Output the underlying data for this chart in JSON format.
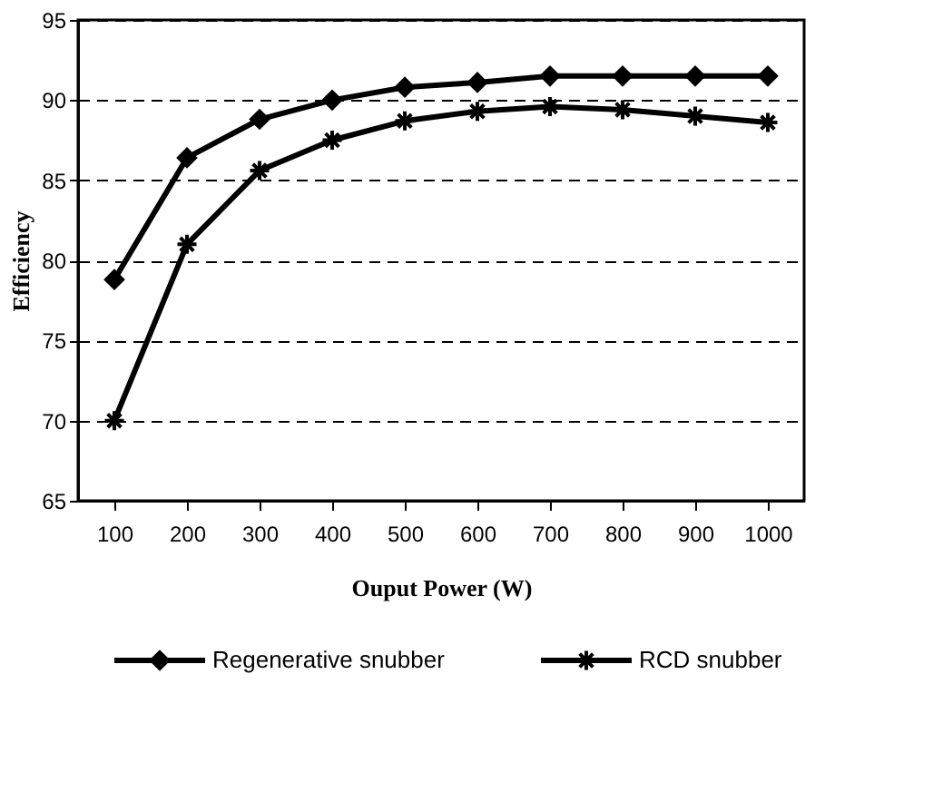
{
  "chart_data": {
    "type": "line",
    "xlabel": "Ouput Power (W)",
    "ylabel": "Efficiency",
    "categories": [
      "100",
      "200",
      "300",
      "400",
      "500",
      "600",
      "700",
      "800",
      "900",
      "1000"
    ],
    "series": [
      {
        "name": "Regenerative snubber",
        "color": "#000000",
        "marker": "diamond",
        "values": [
          78.8,
          86.4,
          88.8,
          90.0,
          90.8,
          91.1,
          91.5,
          91.5,
          91.5,
          91.5
        ]
      },
      {
        "name": "RCD snubber",
        "color": "#000000",
        "marker": "cross",
        "values": [
          70.0,
          81.0,
          85.6,
          87.5,
          88.7,
          89.3,
          89.6,
          89.4,
          89.0,
          88.6
        ]
      }
    ],
    "ylim": [
      65,
      95
    ],
    "yticks": [
      65,
      70,
      75,
      80,
      85,
      90,
      95
    ],
    "grid": "y",
    "legend": "bottom",
    "line_style": "solid"
  }
}
